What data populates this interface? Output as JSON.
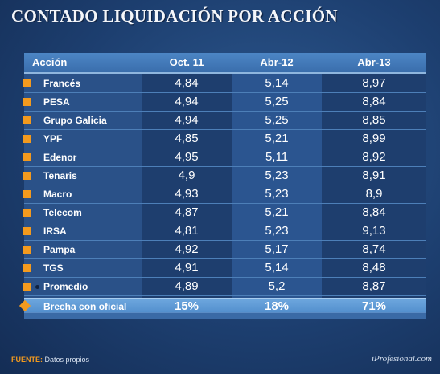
{
  "title": "CONTADO LIQUIDACIÓN POR ACCIÓN",
  "table": {
    "headers": [
      "Acción",
      "Oct. 11",
      "Abr-12",
      "Abr-13"
    ],
    "rows": [
      {
        "label": "Francés",
        "v": [
          "4,84",
          "5,14",
          "8,97"
        ]
      },
      {
        "label": "PESA",
        "v": [
          "4,94",
          "5,25",
          "8,84"
        ]
      },
      {
        "label": "Grupo Galicia",
        "v": [
          "4,94",
          "5,25",
          "8,85"
        ]
      },
      {
        "label": "YPF",
        "v": [
          "4,85",
          "5,21",
          "8,99"
        ]
      },
      {
        "label": "Edenor",
        "v": [
          "4,95",
          "5,11",
          "8,92"
        ]
      },
      {
        "label": "Tenaris",
        "v": [
          "4,9",
          "5,23",
          "8,91"
        ]
      },
      {
        "label": "Macro",
        "v": [
          "4,93",
          "5,23",
          "8,9"
        ]
      },
      {
        "label": "Telecom",
        "v": [
          "4,87",
          "5,21",
          "8,84"
        ]
      },
      {
        "label": "IRSA",
        "v": [
          "4,81",
          "5,23",
          "9,13"
        ]
      },
      {
        "label": "Pampa",
        "v": [
          "4,92",
          "5,17",
          "8,74"
        ]
      },
      {
        "label": "TGS",
        "v": [
          "4,91",
          "5,14",
          "8,48"
        ]
      }
    ],
    "promedio": {
      "label": "Promedio",
      "v": [
        "4,89",
        "5,2",
        "8,87"
      ]
    },
    "brecha": {
      "label": "Brecha con oficial",
      "v": [
        "15%",
        "18%",
        "71%"
      ]
    }
  },
  "footer": {
    "source_label": "FUENTE:",
    "source_text": "Datos propios",
    "credit": "iProfesional.com"
  },
  "colors": {
    "accent": "#f39a1e",
    "background": "#1d3f70",
    "header": "#4c86c5"
  }
}
